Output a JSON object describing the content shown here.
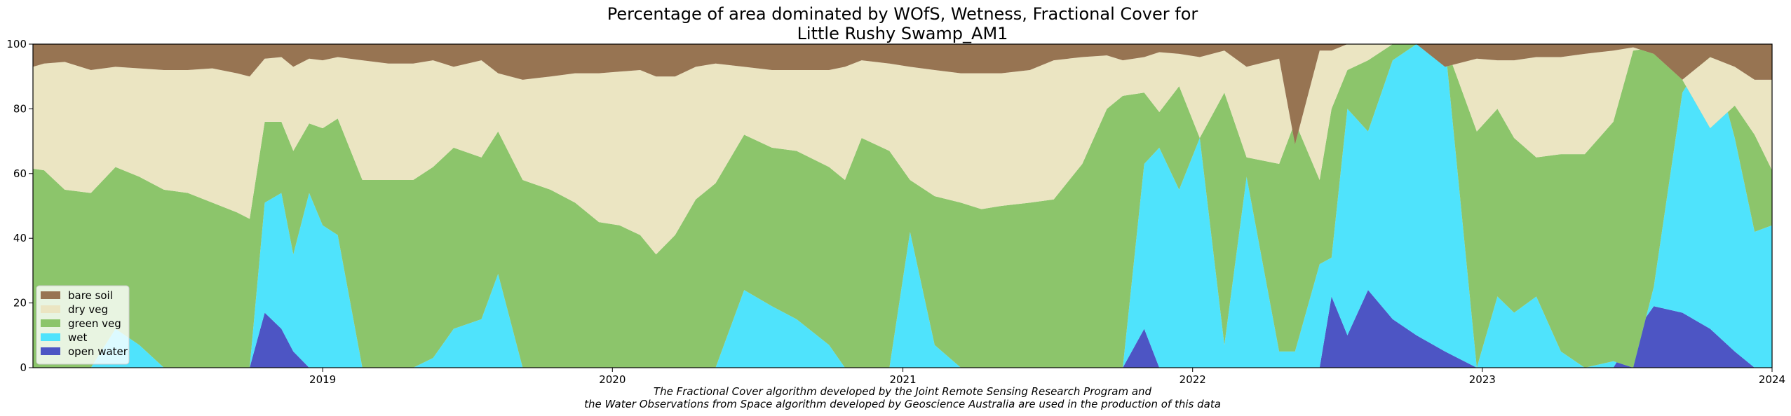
{
  "chart_data": {
    "type": "area",
    "title_line1": "Percentage of area dominated by WOfS, Wetness, Fractional Cover for",
    "title_line2": "Little Rushy Swamp_AM1",
    "xlabel": "",
    "ylabel": "",
    "xlim": [
      "2018-01-01",
      "2024-01-01"
    ],
    "ylim": [
      0,
      100
    ],
    "x_ticks": [
      "2019",
      "2020",
      "2021",
      "2022",
      "2023",
      "2024"
    ],
    "y_ticks": [
      "0",
      "20",
      "40",
      "60",
      "80",
      "100"
    ],
    "grid": false,
    "legend_position": "lower-left",
    "legend": [
      "bare soil",
      "dry veg",
      "green veg",
      "wet",
      "open water"
    ],
    "colors": {
      "bare soil": "#977452",
      "dry veg": "#ebe5c2",
      "green veg": "#8cc56b",
      "wet": "#4fe3fc",
      "open water": "#4d55c4"
    },
    "x": [
      "2018-01-01",
      "2018-01-15",
      "2018-02-10",
      "2018-03-15",
      "2018-04-15",
      "2018-05-15",
      "2018-06-15",
      "2018-07-15",
      "2018-08-15",
      "2018-09-15",
      "2018-10-01",
      "2018-10-20",
      "2018-11-10",
      "2018-11-25",
      "2018-12-15",
      "2019-01-01",
      "2019-01-20",
      "2019-02-20",
      "2019-03-25",
      "2019-04-25",
      "2019-05-20",
      "2019-06-15",
      "2019-07-20",
      "2019-08-10",
      "2019-09-10",
      "2019-10-15",
      "2019-11-15",
      "2019-12-15",
      "2020-01-10",
      "2020-02-05",
      "2020-02-25",
      "2020-03-20",
      "2020-04-15",
      "2020-05-10",
      "2020-06-15",
      "2020-07-20",
      "2020-08-20",
      "2020-09-30",
      "2020-10-20",
      "2020-11-10",
      "2020-12-15",
      "2021-01-10",
      "2021-02-10",
      "2021-03-15",
      "2021-04-10",
      "2021-05-05",
      "2021-06-10",
      "2021-07-10",
      "2021-08-15",
      "2021-09-15",
      "2021-10-05",
      "2021-11-01",
      "2021-11-20",
      "2021-12-15",
      "2022-01-10",
      "2022-02-10",
      "2022-03-10",
      "2022-04-20",
      "2022-05-10",
      "2022-06-10",
      "2022-06-25",
      "2022-07-15",
      "2022-08-10",
      "2022-09-10",
      "2022-10-10",
      "2022-11-15",
      "2022-12-25",
      "2023-01-20",
      "2023-02-10",
      "2023-03-10",
      "2023-04-10",
      "2023-05-10",
      "2023-06-15",
      "2023-07-10",
      "2023-08-05",
      "2023-09-10",
      "2023-10-15",
      "2023-11-15",
      "2023-12-10",
      "2024-01-01"
    ],
    "series": [
      {
        "name": "open water",
        "values": [
          0,
          0,
          0,
          0,
          0,
          0,
          0,
          0,
          0,
          0,
          0,
          17,
          12,
          5,
          0,
          0,
          0,
          0,
          0,
          0,
          0,
          0,
          0,
          0,
          0,
          0,
          0,
          0,
          0,
          0,
          0,
          0,
          0,
          0,
          0,
          0,
          0,
          0,
          0,
          0,
          0,
          0,
          0,
          0,
          0,
          0,
          0,
          0,
          0,
          0,
          0,
          12,
          0,
          0,
          0,
          0,
          0,
          0,
          0,
          0,
          22,
          10,
          24,
          15,
          10,
          5,
          0,
          0,
          0,
          0,
          0,
          0,
          0,
          10,
          19,
          17,
          12,
          5,
          0,
          0
        ]
      },
      {
        "name": "wet",
        "values": [
          0,
          0,
          0,
          0,
          12,
          7,
          0,
          0,
          0,
          0,
          0,
          51,
          54,
          35,
          54,
          44,
          41,
          0,
          0,
          0,
          3,
          12,
          15,
          29,
          0,
          0,
          0,
          0,
          0,
          0,
          0,
          0,
          0,
          0,
          24,
          19,
          15,
          7,
          0,
          0,
          0,
          42,
          7,
          0,
          0,
          0,
          0,
          0,
          0,
          0,
          0,
          63,
          68,
          55,
          71,
          7,
          59,
          5,
          5,
          32,
          34,
          80,
          73,
          95,
          100,
          100,
          0,
          22,
          17,
          22,
          5,
          0,
          2,
          0,
          25,
          85,
          99,
          71,
          42,
          44
        ]
      },
      {
        "name": "green veg",
        "values": [
          61.5,
          61,
          55,
          54,
          62,
          59,
          55,
          54,
          51,
          48,
          46,
          76,
          76,
          67,
          75.5,
          74,
          77,
          58,
          58,
          58,
          62,
          68,
          65,
          73,
          58,
          55,
          51,
          45,
          44,
          41,
          35,
          41,
          52,
          57,
          72,
          68,
          67,
          62,
          58,
          71,
          67,
          58,
          53,
          51,
          49,
          50,
          51,
          52,
          63,
          80,
          84,
          85,
          79,
          87,
          71,
          85,
          65,
          63,
          76,
          58,
          80,
          92,
          95,
          100,
          100,
          100,
          73,
          80,
          71,
          65,
          66,
          66,
          76,
          98,
          99,
          89,
          74,
          81,
          72,
          61
        ]
      },
      {
        "name": "dry veg",
        "values": [
          93,
          94,
          94.5,
          92,
          93,
          92.5,
          92,
          92,
          92.5,
          91,
          90,
          95.5,
          96,
          93,
          95.5,
          95,
          96,
          95,
          94,
          94,
          95,
          93,
          95,
          91,
          89,
          90,
          91,
          91,
          91.5,
          92,
          90,
          90,
          93,
          94,
          93,
          92,
          92,
          92,
          93,
          95,
          94,
          93,
          92,
          91,
          91,
          91,
          92,
          95,
          96,
          96.5,
          95,
          96,
          97.5,
          97,
          96,
          98,
          93,
          95.5,
          69,
          98,
          98,
          100,
          100,
          100,
          100,
          93,
          95.5,
          95,
          95,
          96,
          96,
          97,
          98,
          99,
          97,
          89,
          96,
          93,
          89,
          89
        ]
      },
      {
        "name": "bare soil",
        "values": [
          100,
          100,
          100,
          100,
          100,
          100,
          100,
          100,
          100,
          100,
          100,
          100,
          100,
          100,
          100,
          100,
          100,
          100,
          100,
          100,
          100,
          100,
          100,
          100,
          100,
          100,
          100,
          100,
          100,
          100,
          100,
          100,
          100,
          100,
          100,
          100,
          100,
          100,
          100,
          100,
          100,
          100,
          100,
          100,
          100,
          100,
          100,
          100,
          100,
          100,
          100,
          100,
          100,
          100,
          100,
          100,
          100,
          100,
          100,
          100,
          100,
          100,
          100,
          100,
          100,
          100,
          100,
          100,
          100,
          100,
          100,
          100,
          100,
          100,
          100,
          100,
          100,
          100,
          100,
          100
        ]
      }
    ]
  },
  "caption_line1": "The Fractional Cover algorithm developed by the Joint Remote Sensing Research Program and",
  "caption_line2": "the Water Observations from Space algorithm developed by Geoscience Australia are used in the production of this data"
}
